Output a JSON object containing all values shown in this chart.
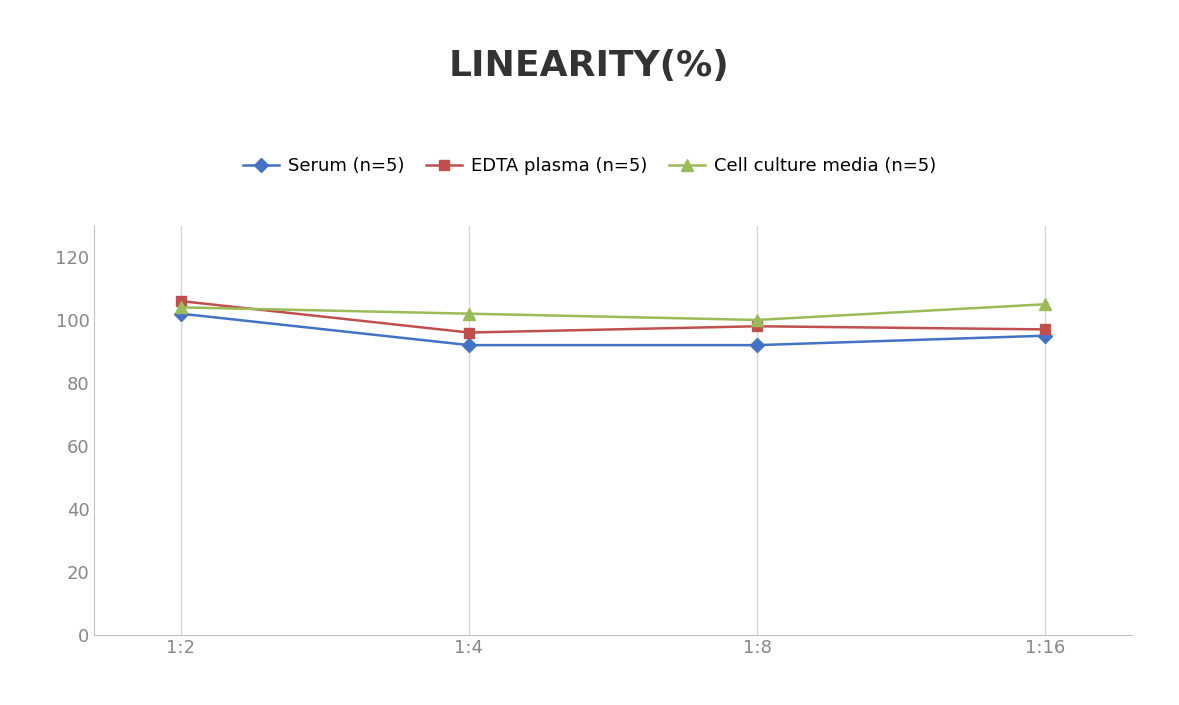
{
  "title": "LINEARITY(%)",
  "title_fontsize": 26,
  "title_fontweight": "bold",
  "x_labels": [
    "1:2",
    "1:4",
    "1:8",
    "1:16"
  ],
  "x_positions": [
    0,
    1,
    2,
    3
  ],
  "series": [
    {
      "name": "Serum (n=5)",
      "values": [
        102,
        92,
        92,
        95
      ],
      "color": "#4472C4",
      "marker": "D",
      "marker_size": 7,
      "linewidth": 1.8
    },
    {
      "name": "EDTA plasma (n=5)",
      "values": [
        106,
        96,
        98,
        97
      ],
      "color": "#C0504D",
      "marker": "s",
      "marker_size": 7,
      "linewidth": 1.8
    },
    {
      "name": "Cell culture media (n=5)",
      "values": [
        104,
        102,
        100,
        105
      ],
      "color": "#9BBB59",
      "marker": "^",
      "marker_size": 8,
      "linewidth": 1.8
    }
  ],
  "ylim": [
    0,
    130
  ],
  "yticks": [
    0,
    20,
    40,
    60,
    80,
    100,
    120
  ],
  "ylabel": "",
  "xlabel": "",
  "background_color": "#ffffff",
  "grid_color": "#d8d8d8",
  "legend_fontsize": 13,
  "tick_fontsize": 13,
  "tick_color": "#888888",
  "spine_color": "#c0c0c0"
}
